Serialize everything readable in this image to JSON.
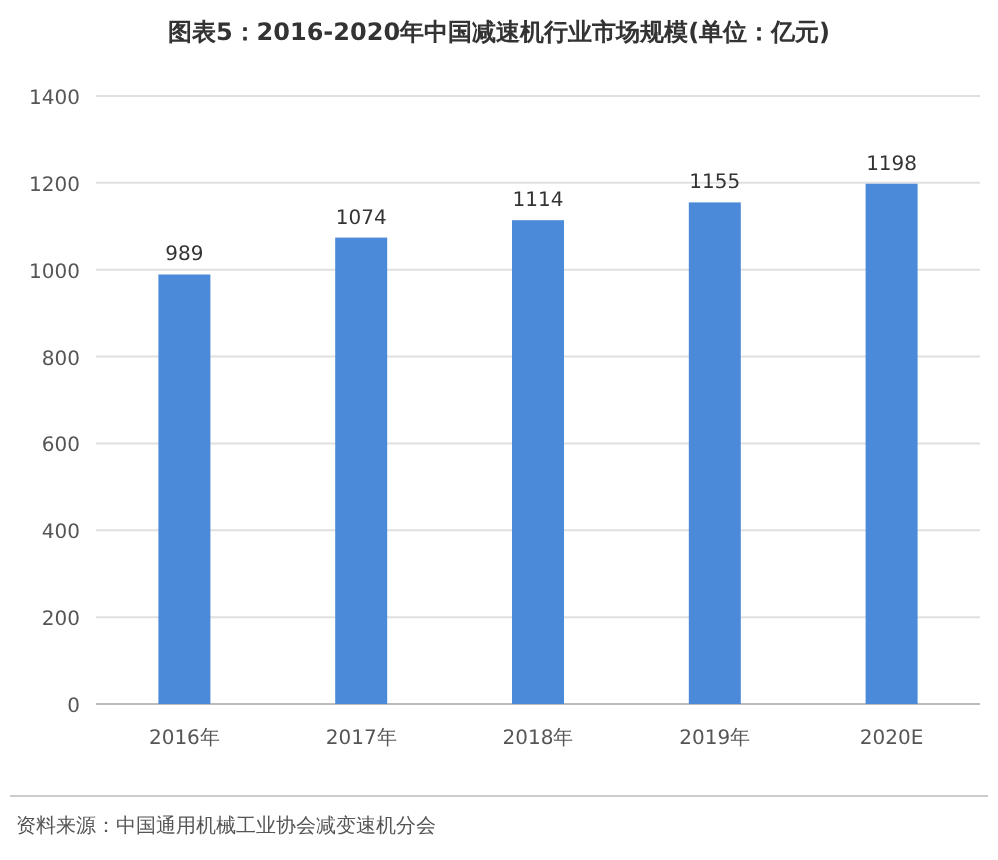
{
  "chart_data": {
    "type": "bar",
    "title": "图表5：2016-2020年中国减速机行业市场规模(单位：亿元)",
    "categories": [
      "2016年",
      "2017年",
      "2018年",
      "2019年",
      "2020E"
    ],
    "values": [
      989,
      1074,
      1114,
      1155,
      1198
    ],
    "color": "#4a8ad9",
    "ylim": [
      0,
      1400
    ],
    "yticks": [
      0,
      200,
      400,
      600,
      800,
      1000,
      1200,
      1400
    ],
    "grid": "y",
    "data_labels": true,
    "annotations": [
      "资料来源：中国通用机械工业协会减变速机分会"
    ]
  }
}
